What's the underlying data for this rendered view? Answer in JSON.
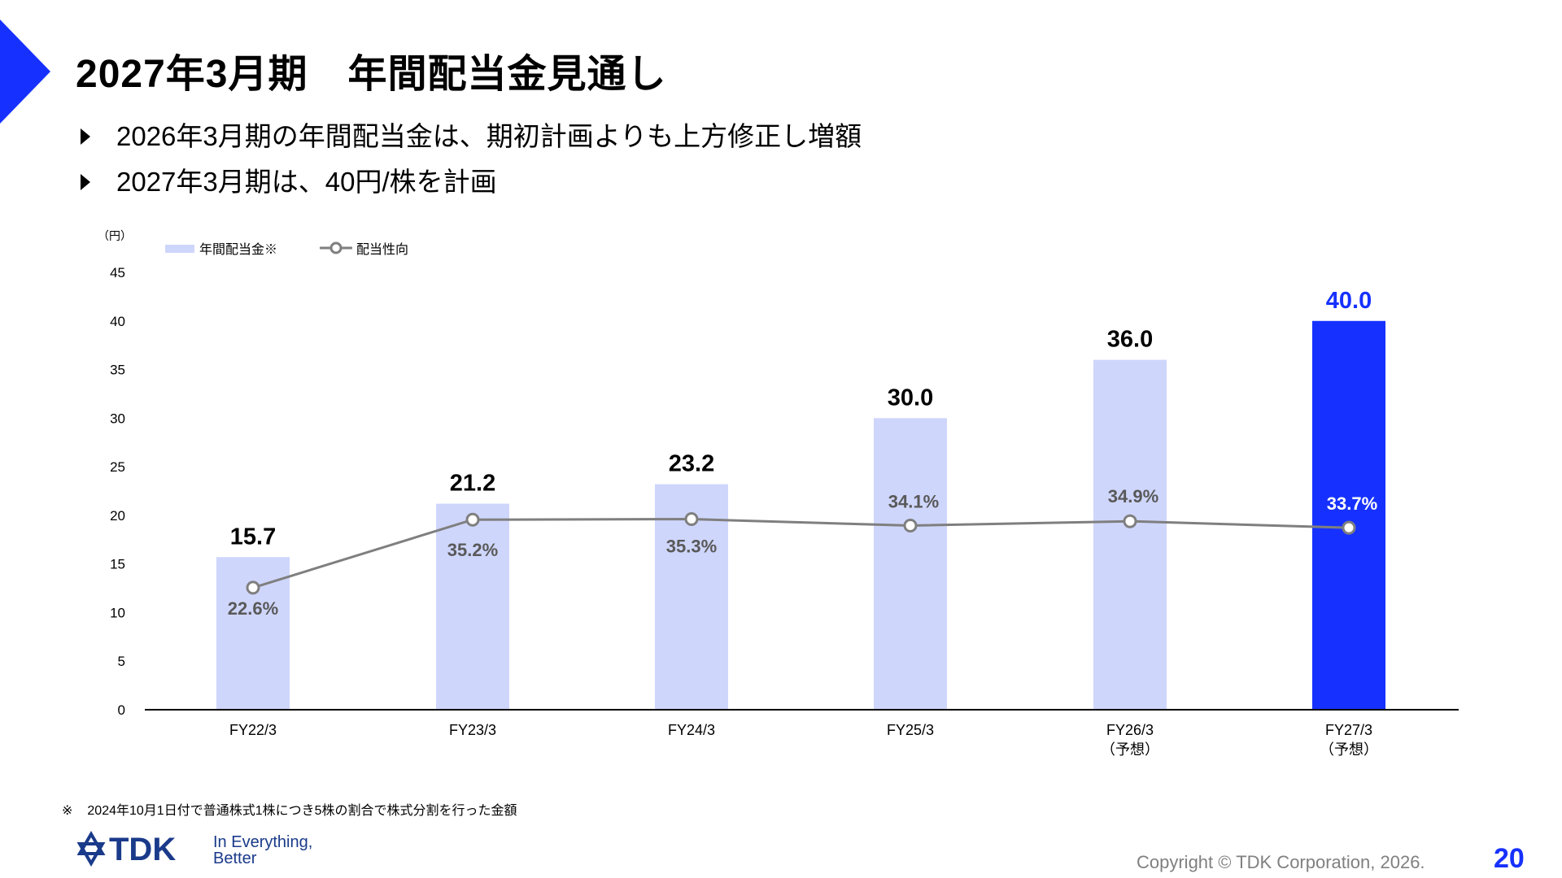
{
  "title": "2027年3月期　年間配当金見通し",
  "bullets": [
    "2026年3月期の年間配当金は、期初計画よりも上方修正し増額",
    "2027年3月期は、40円/株を計画"
  ],
  "chart_data": {
    "type": "bar",
    "ylabel": "（円）",
    "ylim": [
      0,
      45
    ],
    "yticks": [
      0,
      5,
      10,
      15,
      20,
      25,
      30,
      35,
      40,
      45
    ],
    "categories": [
      "FY22/3",
      "FY23/3",
      "FY24/3",
      "FY25/3",
      "FY26/3",
      "FY27/3"
    ],
    "category_sublabels": [
      "",
      "",
      "",
      "",
      "（予想）",
      "（予想）"
    ],
    "legend": {
      "position": "top-left"
    },
    "series": [
      {
        "name": "年間配当金※",
        "type": "bar",
        "values": [
          15.7,
          21.2,
          23.2,
          30.0,
          36.0,
          40.0
        ],
        "labels": [
          "15.7",
          "21.2",
          "23.2",
          "30.0",
          "36.0",
          "40.0"
        ],
        "color": "#cfd6fc",
        "highlight_index": 5,
        "highlight_color": "#1631ff"
      },
      {
        "name": "配当性向",
        "type": "line",
        "values": [
          22.6,
          35.2,
          35.3,
          34.1,
          34.9,
          33.7
        ],
        "labels": [
          "22.6%",
          "35.2%",
          "35.3%",
          "34.1%",
          "34.9%",
          "33.7%"
        ],
        "color": "#7f7f7f"
      }
    ]
  },
  "footnote": {
    "mark": "※",
    "text": "2024年10月1日付で普通株式1株につき5株の割合で株式分割を行った金額"
  },
  "logo": {
    "brand": "TDK",
    "tagline_line1": "In Everything,",
    "tagline_line2": "Better"
  },
  "colors": {
    "accent": "#1631ff",
    "bar": "#cfd6fc",
    "line": "#7f7f7f"
  },
  "copyright": "Copyright  © TDK Corporation, 2026.",
  "page_number": "20"
}
